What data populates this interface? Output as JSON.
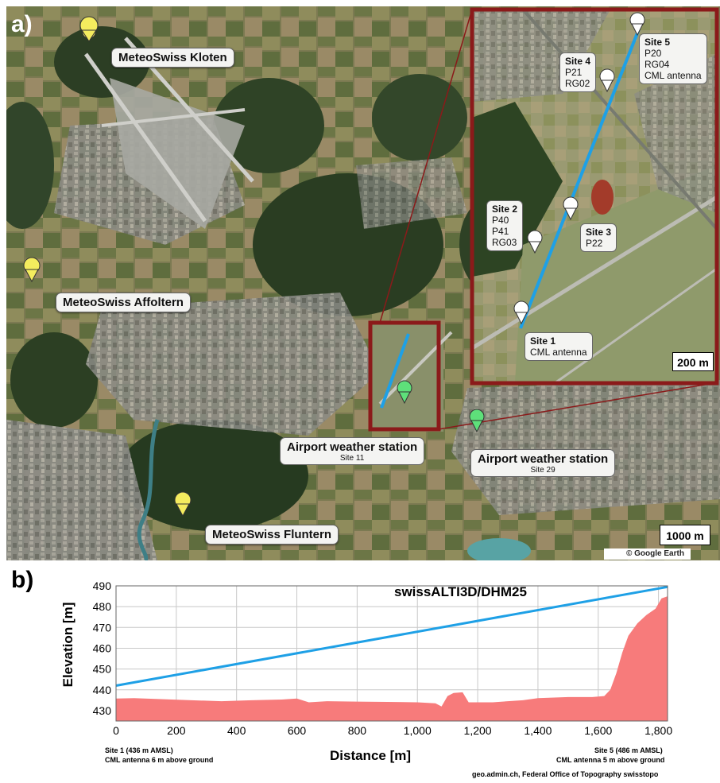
{
  "panel_a": {
    "letter": "a)",
    "stations": {
      "kloten": "MeteoSwiss Kloten",
      "affoltern": "MeteoSwiss Affoltern",
      "fluntern": "MeteoSwiss Fluntern",
      "airport11_title": "Airport weather station",
      "airport11_sub": "Site 11",
      "airport29_title": "Airport weather station",
      "airport29_sub": "Site 29"
    },
    "inset": {
      "site5": {
        "h": "Site 5",
        "lines": [
          "P20",
          "RG04",
          "CML antenna"
        ]
      },
      "site4": {
        "h": "Site 4",
        "lines": [
          "P21",
          "RG02"
        ]
      },
      "site2": {
        "h": "Site 2",
        "lines": [
          "P40",
          "P41",
          "RG03"
        ]
      },
      "site3": {
        "h": "Site 3",
        "lines": [
          "P22"
        ]
      },
      "site1": {
        "h": "Site 1",
        "lines": [
          "CML antenna"
        ]
      },
      "scale": "200 m"
    },
    "scale": "1000 m",
    "credit": "© Google Earth",
    "colors": {
      "link": "#1ea0e6",
      "frame": "#8b1a1a",
      "pin_yellow": "#f4ec5e",
      "pin_green": "#5ee07a",
      "pin_white": "#ffffff"
    }
  },
  "panel_b": {
    "letter": "b)",
    "left_note_1": "Site 1 (436 m AMSL)",
    "left_note_2": "CML antenna 6 m above ground",
    "right_note_1": "Site 5 (486 m AMSL)",
    "right_note_2": "CML antenna 5 m above ground",
    "source": "geo.admin.ch, Federal Office of Topography swisstopo"
  },
  "chart_data": {
    "type": "area",
    "title": "swissALTI3D/DHM25",
    "xlabel": "Distance [m]",
    "ylabel": "Elevation [m]",
    "xlim": [
      0,
      1830
    ],
    "ylim": [
      425,
      490
    ],
    "x_ticks": [
      "0",
      "200",
      "400",
      "600",
      "800",
      "1,000",
      "1,200",
      "1,400",
      "1,600",
      "1,800"
    ],
    "y_ticks": [
      "430",
      "440",
      "450",
      "460",
      "470",
      "480",
      "490"
    ],
    "grid": true,
    "series": [
      {
        "kind": "terrain",
        "color": "#f77b7b",
        "x": [
          0,
          60,
          150,
          250,
          350,
          450,
          550,
          600,
          640,
          700,
          800,
          900,
          1000,
          1060,
          1080,
          1100,
          1120,
          1150,
          1170,
          1190,
          1250,
          1300,
          1350,
          1400,
          1500,
          1580,
          1620,
          1640,
          1660,
          1680,
          1700,
          1730,
          1760,
          1790,
          1810,
          1830
        ],
        "y": [
          435.8,
          436,
          435.5,
          435,
          434.5,
          435,
          435.3,
          435.8,
          434,
          434.5,
          434.3,
          434.2,
          434,
          433.5,
          432,
          437,
          438.5,
          438.8,
          434,
          434,
          434,
          434.5,
          435,
          436,
          436.5,
          436.5,
          437,
          440,
          448,
          458,
          466,
          472,
          476,
          479,
          484,
          485
        ]
      },
      {
        "kind": "link",
        "color": "#1ea0e6",
        "x": [
          0,
          1830
        ],
        "y": [
          442,
          489.5
        ]
      }
    ]
  }
}
